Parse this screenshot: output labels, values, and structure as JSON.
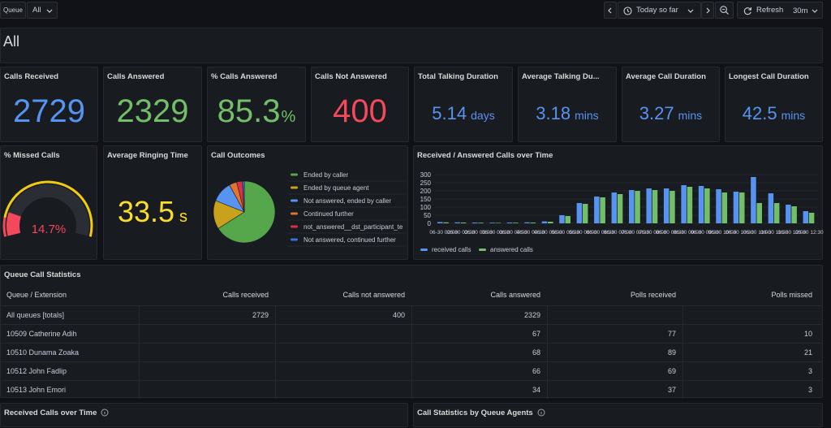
{
  "toolbar": {
    "variable_label": "Queue",
    "variable_value": "All",
    "time_range": "Today so far",
    "refresh_label": "Refresh",
    "refresh_interval": "30m"
  },
  "row_title": "All",
  "stats": [
    {
      "title": "Calls Received",
      "value": 2729,
      "color": "#5794f2"
    },
    {
      "title": "Calls Answered",
      "value": 2329,
      "color": "#73bf69"
    },
    {
      "title": "% Calls Answered",
      "value": 85.3,
      "unit": "%",
      "color": "#73bf69"
    },
    {
      "title": "Calls Not Answered",
      "value": 400,
      "color": "#f2495c"
    },
    {
      "title": "Total Talking Duration",
      "value": 5.14,
      "unit": "days",
      "color": "#5794f2"
    },
    {
      "title": "Average Talking Du...",
      "value": 3.18,
      "unit": "mins",
      "color": "#5794f2"
    },
    {
      "title": "Average Call Duration",
      "value": 3.27,
      "unit": "mins",
      "color": "#5794f2"
    },
    {
      "title": "Longest Call Duration",
      "value": 42.5,
      "unit": "mins",
      "color": "#5794f2"
    }
  ],
  "missed": {
    "title": "% Missed Calls",
    "value": 14.7,
    "unit": "%",
    "color": "#f2495c"
  },
  "ringing": {
    "title": "Average Ringing Time",
    "value": 33.5,
    "unit": "s",
    "color": "#fade2a"
  },
  "call_outcomes": {
    "type": "pie",
    "title": "Call Outcomes",
    "series": [
      {
        "name": "Ended by caller",
        "color": "#56a64b",
        "value": 66
      },
      {
        "name": "Ended by queue agent",
        "color": "#c8a21a",
        "value": 15
      },
      {
        "name": "Not answered, ended by caller",
        "color": "#5794f2",
        "value": 11
      },
      {
        "name": "Continued further",
        "color": "#e0752d",
        "value": 4
      },
      {
        "name": "not_answered__dst_participant_te",
        "color": "#e02f44",
        "value": 3
      },
      {
        "name": "Not answered, continued further",
        "color": "#3274d9",
        "value": 1
      }
    ]
  },
  "calls_over_time": {
    "type": "bar",
    "title": "Received / Answered Calls over Time",
    "categories": [
      "06-30 02:00",
      "06-30 02:30",
      "06-30 03:00",
      "06-30 03:30",
      "06-30 04:00",
      "06-30 04:30",
      "06-30 05:00",
      "06-30 05:30",
      "06-30 06:00",
      "06-30 06:30",
      "06-30 07:00",
      "06-30 07:30",
      "06-30 08:00",
      "06-30 08:30",
      "06-30 09:00",
      "06-30 09:30",
      "06-30 10:00",
      "06-30 10:30",
      "06-30 11:00",
      "06-30 11:30",
      "06-30 12:00",
      "06-30 12:30"
    ],
    "series": [
      {
        "name": "received calls",
        "color": "#5794f2",
        "values": [
          8,
          6,
          5,
          4,
          5,
          6,
          12,
          50,
          125,
          165,
          190,
          205,
          215,
          215,
          235,
          230,
          210,
          195,
          285,
          185,
          115,
          75
        ]
      },
      {
        "name": "answered calls",
        "color": "#73bf69",
        "values": [
          6,
          5,
          4,
          3,
          4,
          5,
          10,
          45,
          120,
          160,
          180,
          200,
          205,
          200,
          225,
          215,
          190,
          190,
          125,
          125,
          105,
          65
        ]
      }
    ],
    "ylim": [
      0,
      300
    ],
    "yticks": [
      0,
      50,
      100,
      150,
      200,
      250,
      300
    ]
  },
  "table": {
    "title": "Queue Call Statistics",
    "columns": [
      "Queue / Extension",
      "Calls received",
      "Calls not answered",
      "Calls answered",
      "Polls received",
      "Polls missed"
    ],
    "rows": [
      [
        "All queues [totals]",
        2729,
        400,
        2329,
        null,
        null
      ],
      [
        "10509 Catherine Adih",
        null,
        null,
        67,
        77,
        10
      ],
      [
        "10510 Dunama Zoaka",
        null,
        null,
        68,
        89,
        21
      ],
      [
        "10512 John Fadlip",
        null,
        null,
        66,
        69,
        3
      ],
      [
        "10513 John Emori",
        null,
        null,
        34,
        37,
        3
      ]
    ]
  },
  "bottom_panels": [
    "Received Calls over Time",
    "Call Statistics by Queue Agents"
  ]
}
